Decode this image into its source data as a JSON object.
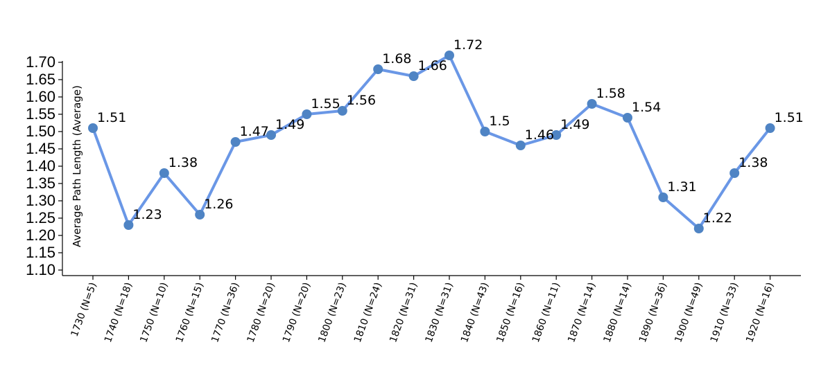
{
  "chart_data": {
    "type": "line",
    "title": "",
    "xlabel": "",
    "ylabel": "Average Path Length (Average)",
    "ylim": [
      1.1,
      1.7
    ],
    "yticks": [
      "1.10",
      "1.15",
      "1.20",
      "1.25",
      "1.30",
      "1.35",
      "1.40",
      "1.45",
      "1.50",
      "1.55",
      "1.60",
      "1.65",
      "1.70"
    ],
    "grid": false,
    "categories": [
      "1730 (N=5)",
      "1740 (N=18)",
      "1750 (N=10)",
      "1760 (N=15)",
      "1770 (N=36)",
      "1780 (N=20)",
      "1790 (N=20)",
      "1800 (N=23)",
      "1810 (N=24)",
      "1820 (N=31)",
      "1830 (N=31)",
      "1840 (N=43)",
      "1850 (N=16)",
      "1860 (N=11)",
      "1870 (N=14)",
      "1880 (N=14)",
      "1890 (N=36)",
      "1900 (N=49)",
      "1910 (N=33)",
      "1920 (N=16)"
    ],
    "values": [
      1.51,
      1.23,
      1.38,
      1.26,
      1.47,
      1.49,
      1.55,
      1.56,
      1.68,
      1.66,
      1.72,
      1.5,
      1.46,
      1.49,
      1.58,
      1.54,
      1.31,
      1.22,
      1.38,
      1.51
    ],
    "value_labels": [
      "1.51",
      "1.23",
      "1.38",
      "1.26",
      "1.47",
      "1.49",
      "1.55",
      "1.56",
      "1.68",
      "1.66",
      "1.72",
      "1.5",
      "1.46",
      "1.49",
      "1.58",
      "1.54",
      "1.31",
      "1.22",
      "1.38",
      "1.51"
    ],
    "line_color": "#6a97e6",
    "point_color": "#4f84c4"
  }
}
